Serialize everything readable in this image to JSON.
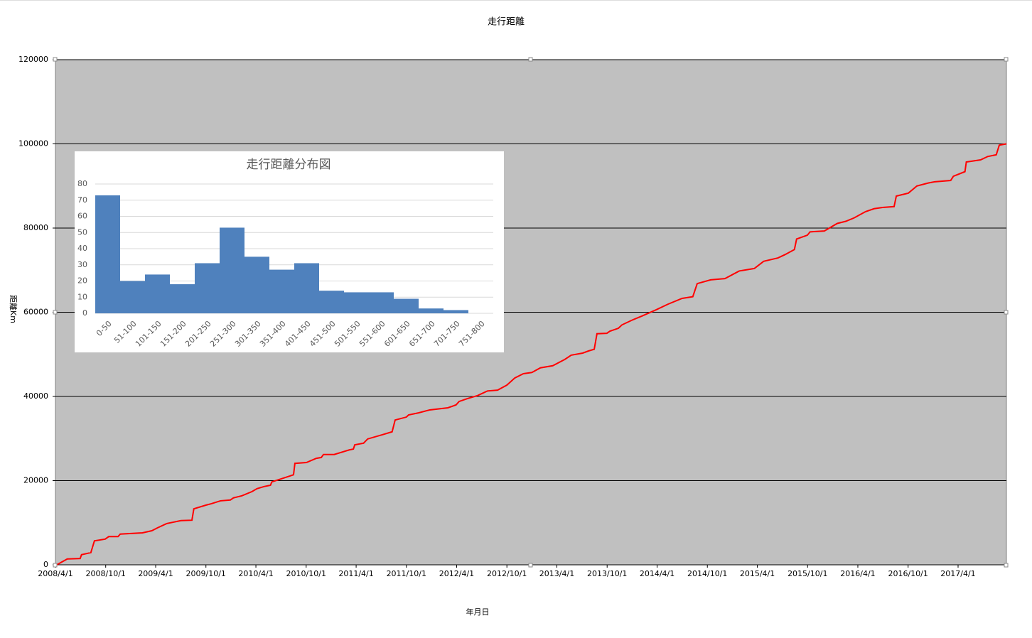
{
  "chart_data": [
    {
      "type": "line",
      "title": "走行距離",
      "x_label": "年月日",
      "y_label": "距離Km",
      "color": "#ff0000",
      "plot_background": "#c0c0c0",
      "grid": true,
      "x": [
        "2008/4/1",
        "2008/4/6",
        "2008/5/14",
        "2008/6/30",
        "2008/7/5",
        "2008/8/8",
        "2008/8/21",
        "2008/9/29",
        "2008/10/12",
        "2008/11/15",
        "2008/11/23",
        "2009/2/12",
        "2009/3/18",
        "2009/4/8",
        "2009/5/11",
        "2009/7/2",
        "2009/8/11",
        "2009/8/18",
        "2009/10/2",
        "2009/10/20",
        "2009/11/23",
        "2009/12/29",
        "2010/1/9",
        "2010/2/9",
        "2010/3/18",
        "2010/4/5",
        "2010/5/1",
        "2010/5/24",
        "2010/5/29",
        "2010/8/3",
        "2010/8/16",
        "2010/8/21",
        "2010/10/2",
        "2010/11/7",
        "2010/11/25",
        "2010/12/3",
        "2011/1/11",
        "2011/3/7",
        "2011/3/22",
        "2011/3/27",
        "2011/4/28",
        "2011/5/13",
        "2011/7/5",
        "2011/8/10",
        "2011/8/21",
        "2011/10/1",
        "2011/10/9",
        "2011/11/14",
        "2011/12/25",
        "2012/2/29",
        "2012/3/30",
        "2012/4/10",
        "2012/5/11",
        "2012/6/16",
        "2012/7/22",
        "2012/8/28",
        "2012/10/1",
        "2012/10/30",
        "2012/11/30",
        "2012/12/31",
        "2013/1/31",
        "2013/3/17",
        "2013/4/30",
        "2013/5/23",
        "2013/7/4",
        "2013/7/25",
        "2013/8/15",
        "2013/8/25",
        "2013/9/30",
        "2013/10/11",
        "2013/11/11",
        "2013/11/24",
        "2013/12/30",
        "2014/2/5",
        "2014/3/29",
        "2014/5/10",
        "2014/7/1",
        "2014/8/9",
        "2014/8/25",
        "2014/10/13",
        "2014/12/4",
        "2015/1/25",
        "2015/3/21",
        "2015/4/24",
        "2015/6/15",
        "2015/7/11",
        "2015/8/14",
        "2015/8/22",
        "2015/9/30",
        "2015/10/10",
        "2015/12/1",
        "2016/1/17",
        "2016/2/17",
        "2016/3/18",
        "2016/4/29",
        "2016/5/30",
        "2016/6/30",
        "2016/8/11",
        "2016/8/19",
        "2016/10/2",
        "2016/11/2",
        "2016/12/13",
        "2017/1/6",
        "2017/3/5",
        "2017/3/15",
        "2017/4/26",
        "2017/5/1",
        "2017/6/22",
        "2017/7/18",
        "2017/8/18",
        "2017/8/29",
        "2017/9/24"
      ],
      "values": [
        0,
        0,
        1400,
        1500,
        2400,
        2900,
        5700,
        6100,
        6700,
        6700,
        7300,
        7600,
        8100,
        8800,
        9800,
        10500,
        10600,
        13300,
        14200,
        14500,
        15200,
        15400,
        15900,
        16400,
        17400,
        18100,
        18600,
        18900,
        19700,
        21100,
        21400,
        24100,
        24300,
        25300,
        25500,
        26200,
        26200,
        27300,
        27500,
        28500,
        28900,
        29900,
        30900,
        31600,
        34400,
        35100,
        35600,
        36100,
        36800,
        37300,
        38000,
        38800,
        39500,
        40200,
        41300,
        41500,
        42700,
        44400,
        45400,
        45700,
        46800,
        47300,
        48800,
        49800,
        50300,
        50800,
        51200,
        54900,
        55000,
        55500,
        56200,
        57000,
        58100,
        59100,
        60600,
        61900,
        63300,
        63700,
        66800,
        67700,
        68000,
        69800,
        70400,
        72100,
        72900,
        73700,
        74900,
        77400,
        78300,
        79100,
        79300,
        81100,
        81600,
        82400,
        83900,
        84600,
        84900,
        85100,
        87600,
        88300,
        90000,
        90700,
        91000,
        91300,
        92300,
        93400,
        95700,
        96200,
        97000,
        97400,
        99700,
        100000
      ],
      "xlim": [
        "2008/4/1",
        "2017/9/24"
      ],
      "xticks": [
        "2008/4/1",
        "2008/10/1",
        "2009/4/1",
        "2009/10/1",
        "2010/4/1",
        "2010/10/1",
        "2011/4/1",
        "2011/10/1",
        "2012/4/1",
        "2012/10/1",
        "2013/4/1",
        "2013/10/1",
        "2014/4/1",
        "2014/10/1",
        "2015/4/1",
        "2015/10/1",
        "2016/4/1",
        "2016/10/1",
        "2017/4/1"
      ],
      "ylim": [
        0,
        120000
      ],
      "yticks": [
        0,
        20000,
        40000,
        60000,
        80000,
        100000,
        120000
      ]
    },
    {
      "type": "bar",
      "title": "走行距離分布図",
      "color": "#4f81bd",
      "grid": true,
      "categories": [
        "0-50",
        "51-100",
        "101-150",
        "151-200",
        "201-250",
        "251-300",
        "301-350",
        "351-400",
        "401-450",
        "451-500",
        "501-550",
        "551-600",
        "601-650",
        "651-700",
        "701-750",
        "751-800"
      ],
      "values": [
        73,
        20,
        24,
        18,
        31,
        53,
        35,
        27,
        31,
        14,
        13,
        13,
        9,
        3,
        2,
        0
      ],
      "ylim": [
        0,
        80
      ],
      "yticks": [
        0,
        10,
        20,
        30,
        40,
        50,
        60,
        70,
        80
      ]
    }
  ]
}
